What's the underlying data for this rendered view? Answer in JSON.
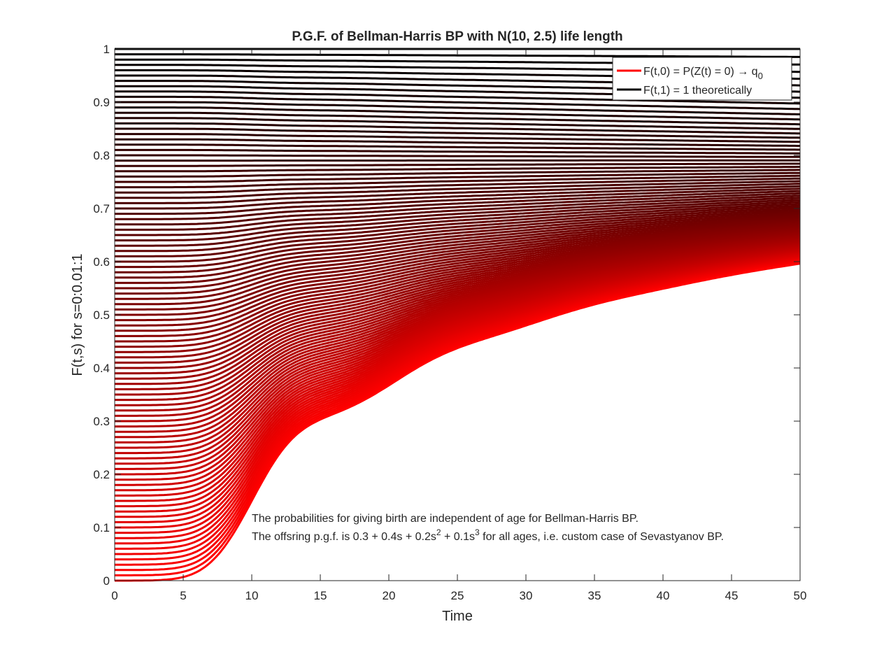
{
  "chart_data": {
    "type": "line",
    "title": "P.G.F. of Bellman-Harris BP with N(10, 2.5) life length",
    "xlabel": "Time",
    "ylabel": "F(t,s) for s=0:0.01:1",
    "xlim": [
      0,
      50
    ],
    "ylim": [
      0,
      1
    ],
    "xticks": [
      "0",
      "5",
      "10",
      "15",
      "20",
      "25",
      "30",
      "35",
      "40",
      "45",
      "50"
    ],
    "yticks": [
      "0",
      "0.1",
      "0.2",
      "0.3",
      "0.4",
      "0.5",
      "0.6",
      "0.7",
      "0.8",
      "0.9",
      "1"
    ],
    "grid": false,
    "legend_position": "top-right",
    "s_values": {
      "start": 0,
      "step": 0.01,
      "end": 1
    },
    "time_range": [
      0,
      50
    ],
    "series": [
      {
        "name": "F(t,0) = P(Z(t) = 0) → q",
        "name_subscript": "0",
        "color": "#ff0000",
        "description_points": [
          [
            0,
            0
          ],
          [
            5,
            0.01
          ],
          [
            7.5,
            0.1
          ],
          [
            10,
            0.24
          ],
          [
            12,
            0.29
          ],
          [
            15,
            0.31
          ],
          [
            20,
            0.37
          ],
          [
            25,
            0.44
          ],
          [
            30,
            0.48
          ],
          [
            35,
            0.52
          ],
          [
            40,
            0.55
          ],
          [
            45,
            0.575
          ],
          [
            50,
            0.6
          ]
        ]
      },
      {
        "name": "F(t,1) = 1 theoretically",
        "color": "#000000",
        "description_points": [
          [
            0,
            1
          ],
          [
            50,
            1
          ]
        ]
      }
    ],
    "annotations": [
      {
        "text": "The probabilities for giving birth are independent of age for Bellman-Harris BP."
      },
      {
        "parts": [
          "The offsring p.g.f. is 0.3 + 0.4s + 0.2s",
          "2",
          " + 0.1s",
          "3",
          " for all ages, i.e. custom case of Sevastyanov BP."
        ]
      }
    ],
    "colors": {
      "low_s": "#ff0000",
      "high_s": "#000000",
      "axis": "#262626"
    }
  }
}
